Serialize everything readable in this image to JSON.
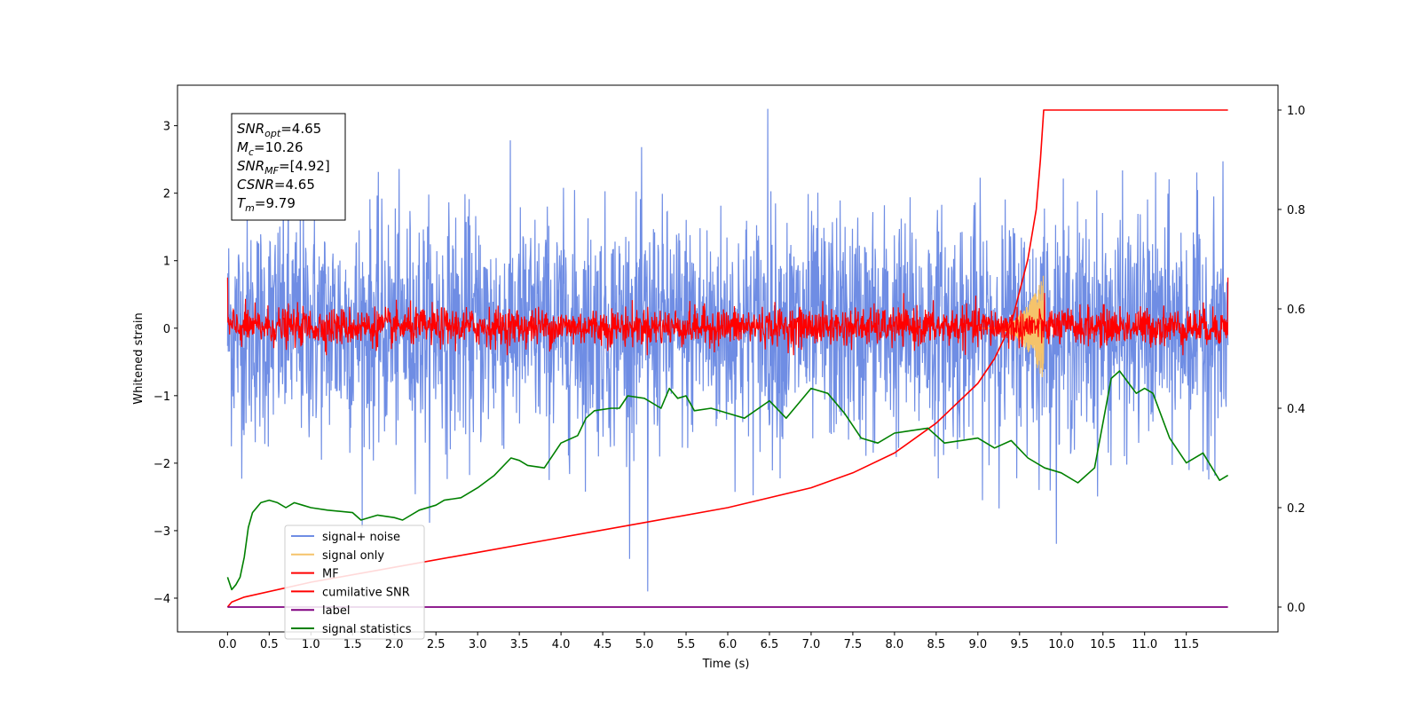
{
  "chart_data": {
    "type": "line",
    "xlabel": "Time (s)",
    "ylabel": "Whitened strain",
    "xlim": [
      -0.6,
      12.6
    ],
    "ylim": [
      -4.5,
      3.6
    ],
    "y2lim": [
      -0.05,
      1.05
    ],
    "x_ticks": [
      0.0,
      0.5,
      1.0,
      1.5,
      2.0,
      2.5,
      3.0,
      3.5,
      4.0,
      4.5,
      5.0,
      5.5,
      6.0,
      6.5,
      7.0,
      7.5,
      8.0,
      8.5,
      9.0,
      9.5,
      10.0,
      10.5,
      11.0,
      11.5
    ],
    "x_tick_labels": [
      "0.0",
      "0.5",
      "1.0",
      "1.5",
      "2.0",
      "2.5",
      "3.0",
      "3.5",
      "4.0",
      "4.5",
      "5.0",
      "5.5",
      "6.0",
      "6.5",
      "7.0",
      "7.5",
      "8.0",
      "8.5",
      "9.0",
      "9.5",
      "10.0",
      "10.5",
      "11.0",
      "11.5"
    ],
    "y_ticks": [
      3,
      2,
      1,
      0,
      -1,
      -2,
      -3,
      -4
    ],
    "y_tick_labels": [
      "3",
      "2",
      "1",
      "0",
      "−1",
      "−2",
      "−3",
      "−4"
    ],
    "y2_ticks": [
      1.0,
      0.8,
      0.6,
      0.4,
      0.2,
      0.0
    ],
    "y2_tick_labels": [
      "1.0",
      "0.8",
      "0.6",
      "0.4",
      "0.2",
      "0.0"
    ],
    "grid": false,
    "legend_position": "lower-left",
    "info_box": [
      {
        "main": "SNR",
        "sub": "opt",
        "rest": "=4.65"
      },
      {
        "main": "M",
        "sub": "c",
        "rest": "=10.26"
      },
      {
        "main": "SNR",
        "sub": "MF",
        "rest": "=[4.92]"
      },
      {
        "main": "CSNR",
        "sub": "",
        "rest": "=4.65"
      },
      {
        "main": "T",
        "sub": "m",
        "rest": "=9.79"
      }
    ],
    "series": [
      {
        "name": "signal+ noise",
        "color": "#6f8de4",
        "axis": "left",
        "style": "noise",
        "x_range": [
          0.0,
          12.0
        ],
        "approx_envelope": [
          -2.2,
          2.4
        ],
        "extreme_min": -3.9,
        "extreme_max": 3.25
      },
      {
        "name": "signal only",
        "color": "#f5c36b",
        "axis": "left",
        "style": "chirp",
        "x_range": [
          9.0,
          9.79
        ],
        "approx_peak": 0.8
      },
      {
        "name": "MF",
        "color": "#ff0000",
        "axis": "left",
        "style": "noise",
        "x_range": [
          0.0,
          12.0
        ],
        "approx_envelope": [
          -0.3,
          0.5
        ]
      },
      {
        "name": "cumilative SNR",
        "color": "#ff0000",
        "axis": "right",
        "style": "line",
        "x": [
          0.0,
          0.05,
          0.2,
          1.0,
          2.0,
          3.0,
          4.0,
          5.0,
          6.0,
          7.0,
          7.5,
          8.0,
          8.5,
          9.0,
          9.2,
          9.4,
          9.6,
          9.7,
          9.75,
          9.79,
          9.8,
          10.0,
          11.0,
          12.0
        ],
        "y": [
          0.0,
          0.01,
          0.02,
          0.05,
          0.08,
          0.11,
          0.14,
          0.17,
          0.2,
          0.24,
          0.27,
          0.31,
          0.37,
          0.45,
          0.5,
          0.57,
          0.7,
          0.8,
          0.9,
          1.0,
          1.0,
          1.0,
          1.0,
          1.0
        ]
      },
      {
        "name": "label",
        "color": "#800080",
        "axis": "right",
        "style": "line",
        "x": [
          0.0,
          12.0
        ],
        "y": [
          0.0,
          0.0
        ]
      },
      {
        "name": "signal statistics",
        "color": "#008000",
        "axis": "right",
        "style": "line",
        "x": [
          0.0,
          0.05,
          0.1,
          0.15,
          0.2,
          0.25,
          0.3,
          0.4,
          0.5,
          0.6,
          0.7,
          0.8,
          0.9,
          1.0,
          1.2,
          1.5,
          1.6,
          1.8,
          2.0,
          2.1,
          2.3,
          2.5,
          2.6,
          2.8,
          3.0,
          3.2,
          3.4,
          3.5,
          3.6,
          3.8,
          4.0,
          4.2,
          4.3,
          4.4,
          4.6,
          4.7,
          4.8,
          5.0,
          5.2,
          5.3,
          5.4,
          5.5,
          5.6,
          5.8,
          6.0,
          6.2,
          6.5,
          6.7,
          6.8,
          7.0,
          7.2,
          7.4,
          7.6,
          7.8,
          8.0,
          8.2,
          8.4,
          8.6,
          8.8,
          9.0,
          9.2,
          9.4,
          9.6,
          9.8,
          10.0,
          10.2,
          10.4,
          10.6,
          10.7,
          10.9,
          11.0,
          11.1,
          11.3,
          11.5,
          11.7,
          11.9,
          12.0
        ],
        "y": [
          0.06,
          0.035,
          0.045,
          0.06,
          0.1,
          0.16,
          0.19,
          0.21,
          0.215,
          0.21,
          0.2,
          0.21,
          0.205,
          0.2,
          0.195,
          0.19,
          0.175,
          0.185,
          0.18,
          0.175,
          0.195,
          0.205,
          0.215,
          0.22,
          0.24,
          0.265,
          0.3,
          0.295,
          0.285,
          0.28,
          0.33,
          0.345,
          0.38,
          0.395,
          0.4,
          0.4,
          0.425,
          0.42,
          0.4,
          0.44,
          0.42,
          0.425,
          0.395,
          0.4,
          0.39,
          0.38,
          0.415,
          0.38,
          0.4,
          0.44,
          0.43,
          0.39,
          0.34,
          0.33,
          0.35,
          0.355,
          0.36,
          0.33,
          0.335,
          0.34,
          0.32,
          0.335,
          0.3,
          0.28,
          0.27,
          0.25,
          0.28,
          0.46,
          0.475,
          0.43,
          0.44,
          0.43,
          0.34,
          0.29,
          0.31,
          0.255,
          0.265
        ]
      }
    ]
  }
}
